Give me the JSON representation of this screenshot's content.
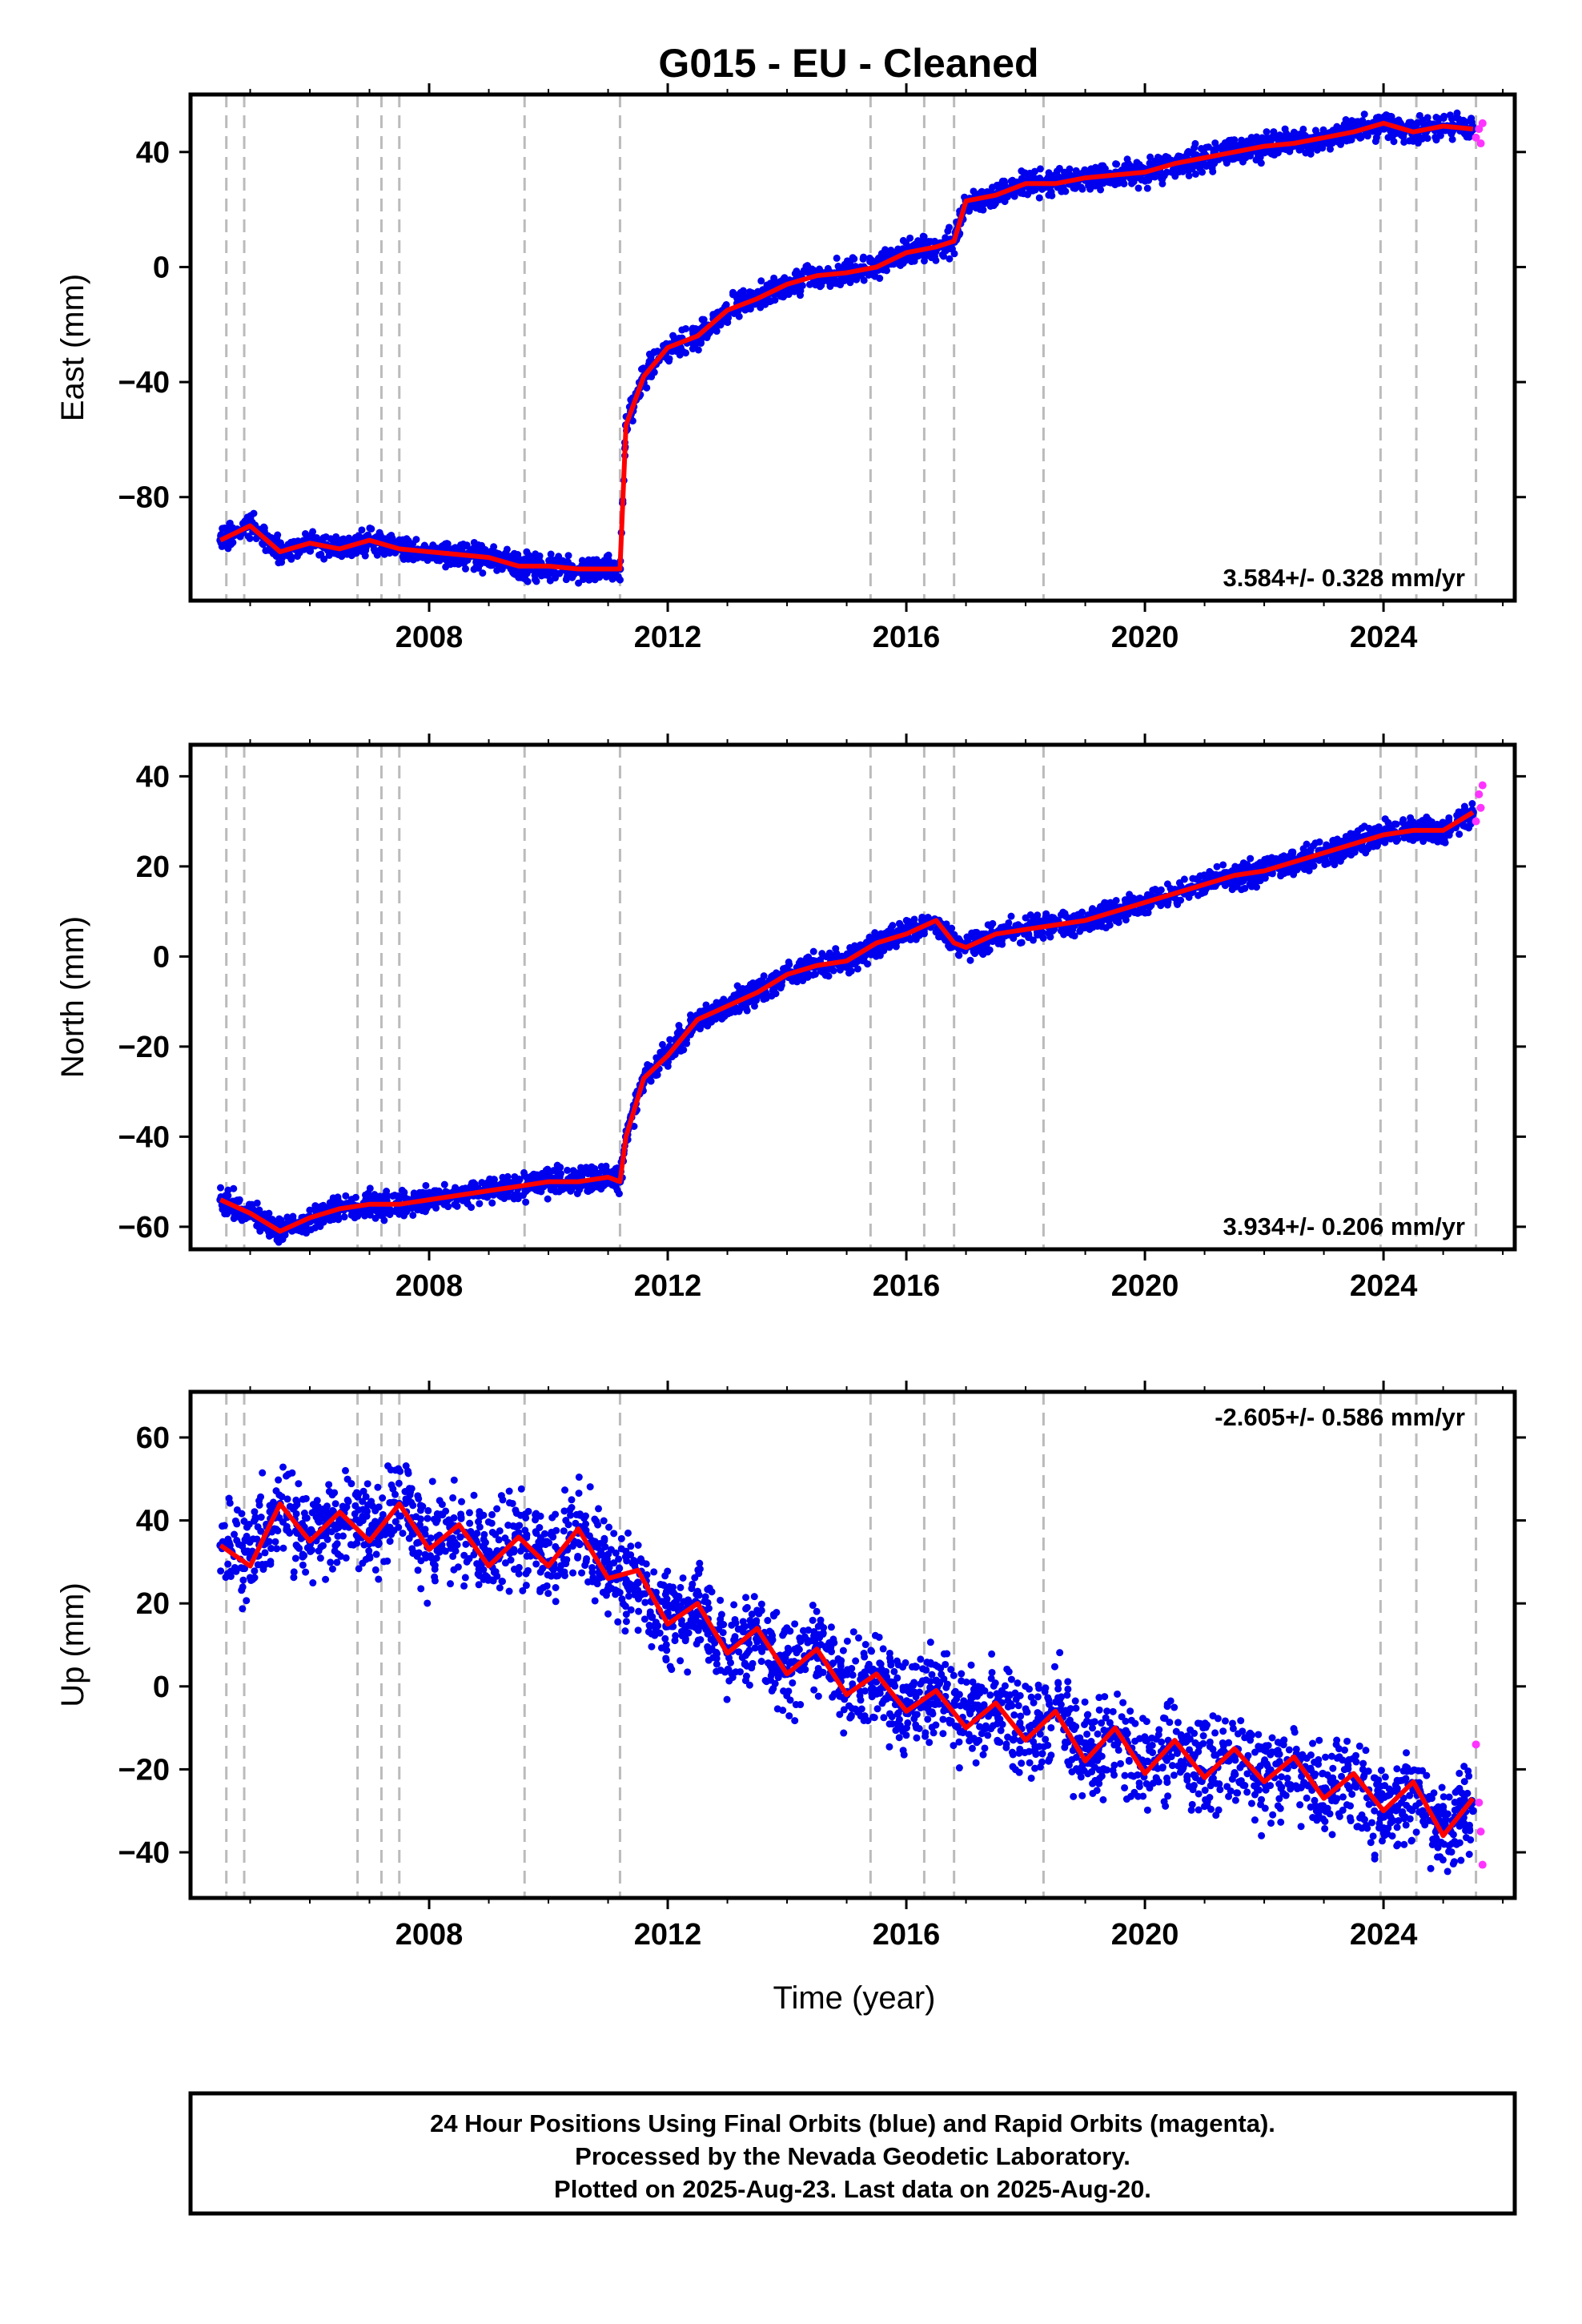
{
  "figure": {
    "title": "G015  - EU - Cleaned",
    "x_axis_label": "Time (year)",
    "footer_lines": [
      "24 Hour Positions Using Final Orbits (blue) and Rapid Orbits (magenta).",
      "Processed by the Nevada Geodetic Laboratory.",
      "Plotted on 2025-Aug-23. Last data on 2025-Aug-20."
    ],
    "colors": {
      "final_orbits": "#0000ee",
      "rapid_orbits": "#ff33ff",
      "model_fit": "#ff0000",
      "event_lines": "#bbbbbb"
    }
  },
  "chart_data": [
    {
      "type": "scatter",
      "component": "east",
      "ylabel": "East (mm)",
      "xlabel": "",
      "rate_text": "3.584+/- 0.328 mm/yr",
      "rate_position": "bottom-right",
      "xlim": [
        2004.0,
        2026.2
      ],
      "ylim": [
        -116,
        60
      ],
      "x_ticks": [
        2008,
        2012,
        2016,
        2020,
        2024
      ],
      "y_ticks": [
        40,
        0,
        -40,
        -80
      ],
      "y_tick_labels": [
        "40",
        "0",
        "−40",
        "−80"
      ],
      "event_lines": [
        2004.6,
        2004.9,
        2006.8,
        2007.2,
        2007.5,
        2009.6,
        2011.2,
        2015.4,
        2016.3,
        2016.8,
        2018.3,
        2023.95,
        2024.55,
        2025.55
      ],
      "series": [
        {
          "name": "Final Orbits (blue)",
          "x": [
            2004.5,
            2005.0,
            2005.5,
            2006.0,
            2006.5,
            2007.0,
            2007.5,
            2008.0,
            2008.5,
            2009.0,
            2009.5,
            2010.0,
            2010.5,
            2011.0,
            2011.2,
            2011.3,
            2011.6,
            2012.0,
            2012.5,
            2013.0,
            2013.5,
            2014.0,
            2014.5,
            2015.0,
            2015.5,
            2016.0,
            2016.5,
            2016.8,
            2017.0,
            2017.5,
            2018.0,
            2018.5,
            2019.0,
            2019.5,
            2020.0,
            2020.5,
            2021.0,
            2021.5,
            2022.0,
            2022.5,
            2023.0,
            2023.5,
            2024.0,
            2024.5,
            2025.0,
            2025.5
          ],
          "y": [
            -95,
            -89,
            -99,
            -96,
            -98,
            -95,
            -98,
            -99,
            -100,
            -101,
            -104,
            -104,
            -105,
            -105,
            -105,
            -55,
            -38,
            -28,
            -24,
            -15,
            -11,
            -6,
            -3,
            -2,
            0,
            5,
            7,
            9,
            23,
            25,
            29,
            29,
            31,
            32,
            33,
            36,
            38,
            40,
            42,
            43,
            45,
            47,
            50,
            47,
            49,
            48
          ]
        },
        {
          "name": "Rapid Orbits (magenta)",
          "x": [
            2025.55,
            2025.6,
            2025.63,
            2025.66
          ],
          "y": [
            45,
            48,
            43,
            50
          ]
        },
        {
          "name": "Model fit",
          "x": [
            2004.5,
            2005.0,
            2005.5,
            2006.0,
            2006.5,
            2007.0,
            2007.5,
            2008.0,
            2008.5,
            2009.0,
            2009.5,
            2010.0,
            2010.5,
            2011.0,
            2011.2,
            2011.3,
            2011.6,
            2012.0,
            2012.5,
            2013.0,
            2013.5,
            2014.0,
            2014.5,
            2015.0,
            2015.5,
            2016.0,
            2016.5,
            2016.8,
            2017.0,
            2017.5,
            2018.0,
            2018.5,
            2019.0,
            2019.5,
            2020.0,
            2020.5,
            2021.0,
            2021.5,
            2022.0,
            2022.5,
            2023.0,
            2023.5,
            2024.0,
            2024.5,
            2025.0,
            2025.5
          ],
          "y": [
            -95,
            -90,
            -99,
            -96,
            -98,
            -95,
            -98,
            -99,
            -100,
            -101,
            -104,
            -104,
            -105,
            -105,
            -105,
            -55,
            -38,
            -28,
            -24,
            -15,
            -11,
            -6,
            -3,
            -2,
            0,
            5,
            7,
            9,
            23,
            25,
            29,
            29,
            31,
            32,
            33,
            36,
            38,
            40,
            42,
            43,
            45,
            47,
            50,
            47,
            49,
            48
          ]
        }
      ]
    },
    {
      "type": "scatter",
      "component": "north",
      "ylabel": "North (mm)",
      "xlabel": "",
      "rate_text": "3.934+/- 0.206 mm/yr",
      "rate_position": "bottom-right",
      "xlim": [
        2004.0,
        2026.2
      ],
      "ylim": [
        -65,
        47
      ],
      "x_ticks": [
        2008,
        2012,
        2016,
        2020,
        2024
      ],
      "y_ticks": [
        40,
        20,
        0,
        -20,
        -40,
        -60
      ],
      "y_tick_labels": [
        "40",
        "20",
        "0",
        "−20",
        "−40",
        "−60"
      ],
      "event_lines": [
        2004.6,
        2004.9,
        2006.8,
        2007.2,
        2007.5,
        2009.6,
        2011.2,
        2015.4,
        2016.3,
        2016.8,
        2018.3,
        2023.95,
        2024.55,
        2025.55
      ],
      "series": [
        {
          "name": "Final Orbits (blue)",
          "x": [
            2004.5,
            2005.0,
            2005.5,
            2006.0,
            2006.5,
            2007.0,
            2007.5,
            2008.0,
            2008.5,
            2009.0,
            2009.5,
            2010.0,
            2010.5,
            2011.0,
            2011.2,
            2011.3,
            2011.6,
            2012.0,
            2012.5,
            2013.0,
            2013.5,
            2014.0,
            2014.5,
            2015.0,
            2015.5,
            2016.0,
            2016.5,
            2016.8,
            2017.0,
            2017.5,
            2018.0,
            2018.5,
            2019.0,
            2019.5,
            2020.0,
            2020.5,
            2021.0,
            2021.5,
            2022.0,
            2022.5,
            2023.0,
            2023.5,
            2024.0,
            2024.5,
            2025.0,
            2025.5
          ],
          "y": [
            -54,
            -57,
            -61,
            -58,
            -56,
            -55,
            -55,
            -54,
            -53,
            -52,
            -51,
            -50,
            -50,
            -49,
            -50,
            -40,
            -27,
            -22,
            -14,
            -11,
            -8,
            -4,
            -2,
            -1,
            3,
            5,
            8,
            3,
            2,
            5,
            6,
            7,
            8,
            10,
            12,
            14,
            16,
            18,
            19,
            21,
            23,
            25,
            27,
            28,
            28,
            32
          ]
        },
        {
          "name": "Rapid Orbits (magenta)",
          "x": [
            2025.55,
            2025.6,
            2025.63,
            2025.66
          ],
          "y": [
            30,
            36,
            33,
            38
          ]
        },
        {
          "name": "Model fit",
          "x": [
            2004.5,
            2005.0,
            2005.5,
            2006.0,
            2006.5,
            2007.0,
            2007.5,
            2008.0,
            2008.5,
            2009.0,
            2009.5,
            2010.0,
            2010.5,
            2011.0,
            2011.2,
            2011.3,
            2011.6,
            2012.0,
            2012.5,
            2013.0,
            2013.5,
            2014.0,
            2014.5,
            2015.0,
            2015.5,
            2016.0,
            2016.5,
            2016.8,
            2017.0,
            2017.5,
            2018.0,
            2018.5,
            2019.0,
            2019.5,
            2020.0,
            2020.5,
            2021.0,
            2021.5,
            2022.0,
            2022.5,
            2023.0,
            2023.5,
            2024.0,
            2024.5,
            2025.0,
            2025.5
          ],
          "y": [
            -54,
            -57,
            -61,
            -58,
            -56,
            -55,
            -55,
            -54,
            -53,
            -52,
            -51,
            -50,
            -50,
            -49,
            -50,
            -40,
            -27,
            -22,
            -14,
            -11,
            -8,
            -4,
            -2,
            -1,
            3,
            5,
            8,
            3,
            2,
            5,
            6,
            7,
            8,
            10,
            12,
            14,
            16,
            18,
            19,
            21,
            23,
            25,
            27,
            28,
            28,
            32
          ]
        }
      ]
    },
    {
      "type": "scatter",
      "component": "up",
      "ylabel": "Up (mm)",
      "xlabel": "Time (year)",
      "rate_text": "-2.605+/- 0.586 mm/yr",
      "rate_position": "top-right",
      "xlim": [
        2004.0,
        2026.2
      ],
      "ylim": [
        -51,
        71
      ],
      "x_ticks": [
        2008,
        2012,
        2016,
        2020,
        2024
      ],
      "y_ticks": [
        60,
        40,
        20,
        0,
        -20,
        -40
      ],
      "y_tick_labels": [
        "60",
        "40",
        "20",
        "0",
        "−20",
        "−40"
      ],
      "event_lines": [
        2004.6,
        2004.9,
        2006.8,
        2007.2,
        2007.5,
        2009.6,
        2011.2,
        2015.4,
        2016.3,
        2016.8,
        2018.3,
        2023.95,
        2024.55,
        2025.55
      ],
      "series": [
        {
          "name": "Final Orbits (blue)",
          "x": [
            2004.5,
            2005.0,
            2005.5,
            2006.0,
            2006.5,
            2007.0,
            2007.5,
            2008.0,
            2008.5,
            2009.0,
            2009.5,
            2010.0,
            2010.5,
            2011.0,
            2011.5,
            2012.0,
            2012.5,
            2013.0,
            2013.5,
            2014.0,
            2014.5,
            2015.0,
            2015.5,
            2016.0,
            2016.5,
            2017.0,
            2017.5,
            2018.0,
            2018.5,
            2019.0,
            2019.5,
            2020.0,
            2020.5,
            2021.0,
            2021.5,
            2022.0,
            2022.5,
            2023.0,
            2023.5,
            2024.0,
            2024.5,
            2025.0,
            2025.5
          ],
          "y": [
            34,
            31,
            44,
            35,
            40,
            37,
            44,
            34,
            38,
            31,
            36,
            30,
            37,
            27,
            25,
            17,
            20,
            8,
            14,
            3,
            9,
            -2,
            3,
            -5,
            -1,
            -9,
            -4,
            -12,
            -6,
            -17,
            -11,
            -20,
            -14,
            -21,
            -17,
            -23,
            -19,
            -26,
            -22,
            -30,
            -25,
            -35,
            -30
          ]
        },
        {
          "name": "Rapid Orbits (magenta)",
          "x": [
            2025.55,
            2025.6,
            2025.63,
            2025.66
          ],
          "y": [
            -14,
            -28,
            -35,
            -43
          ]
        },
        {
          "name": "Model fit",
          "x": [
            2004.5,
            2005.0,
            2005.5,
            2006.0,
            2006.5,
            2007.0,
            2007.5,
            2008.0,
            2008.5,
            2009.0,
            2009.5,
            2010.0,
            2010.5,
            2011.0,
            2011.5,
            2012.0,
            2012.5,
            2013.0,
            2013.5,
            2014.0,
            2014.5,
            2015.0,
            2015.5,
            2016.0,
            2016.5,
            2017.0,
            2017.5,
            2018.0,
            2018.5,
            2019.0,
            2019.5,
            2020.0,
            2020.5,
            2021.0,
            2021.5,
            2022.0,
            2022.5,
            2023.0,
            2023.5,
            2024.0,
            2024.5,
            2025.0,
            2025.5
          ],
          "y": [
            34,
            29,
            44,
            35,
            42,
            35,
            44,
            33,
            39,
            29,
            36,
            29,
            38,
            26,
            28,
            15,
            20,
            8,
            14,
            3,
            9,
            -2,
            3,
            -6,
            -1,
            -10,
            -4,
            -13,
            -6,
            -18,
            -10,
            -21,
            -13,
            -22,
            -15,
            -23,
            -17,
            -27,
            -21,
            -30,
            -23,
            -36,
            -27
          ]
        }
      ]
    }
  ]
}
